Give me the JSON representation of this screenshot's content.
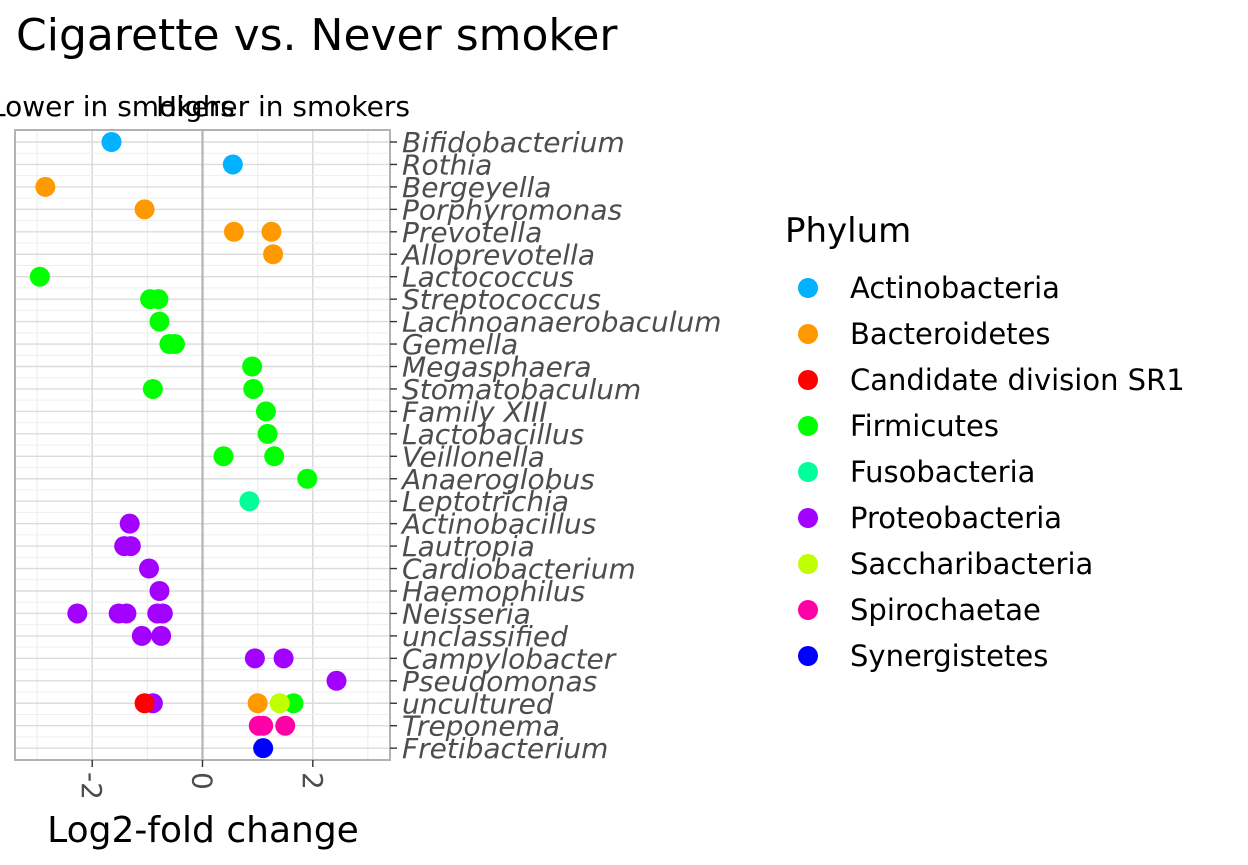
{
  "chart_data": {
    "type": "scatter",
    "title": "Cigarette vs. Never smoker",
    "xlabel": "Log2-fold change",
    "ylabel": "",
    "direction_labels": {
      "lower": "Lower in smokers",
      "higher": "Higher in smokers"
    },
    "xlim": [
      -3.4,
      3.4
    ],
    "x_ticks": [
      -2,
      0,
      2
    ],
    "x_tick_labels": [
      "-2",
      "0",
      "2"
    ],
    "grid": true,
    "legend_position": "right",
    "genera": [
      "Bifidobacterium",
      "Rothia",
      "Bergeyella",
      "Porphyromonas",
      "Prevotella",
      "Alloprevotella",
      "Lactococcus",
      "Streptococcus",
      "Lachnoanaerobaculum",
      "Gemella",
      "Megasphaera",
      "Stomatobaculum",
      "Family XIII",
      "Lactobacillus",
      "Veillonella",
      "Anaeroglobus",
      "Leptotrichia",
      "Actinobacillus",
      "Lautropia",
      "Cardiobacterium",
      "Haemophilus",
      "Neisseria",
      "unclassified",
      "Campylobacter",
      "Pseudomonas",
      "uncultured",
      "Treponema",
      "Fretibacterium"
    ],
    "legend": {
      "title": "Phylum",
      "entries": [
        {
          "name": "Actinobacteria",
          "color": "#00B2FF"
        },
        {
          "name": "Bacteroidetes",
          "color": "#FF9900"
        },
        {
          "name": "Candidate division SR1",
          "color": "#FF0000"
        },
        {
          "name": "Firmicutes",
          "color": "#00FF00"
        },
        {
          "name": "Fusobacteria",
          "color": "#00FF99"
        },
        {
          "name": "Proteobacteria",
          "color": "#A200FF"
        },
        {
          "name": "Saccharibacteria",
          "color": "#BFFF00"
        },
        {
          "name": "Spirochaetae",
          "color": "#FF00A6"
        },
        {
          "name": "Synergistetes",
          "color": "#0000FF"
        }
      ]
    },
    "points": [
      {
        "genus": "Bifidobacterium",
        "x": -1.65,
        "phylum": "Actinobacteria"
      },
      {
        "genus": "Rothia",
        "x": 0.55,
        "phylum": "Actinobacteria"
      },
      {
        "genus": "Bergeyella",
        "x": -2.85,
        "phylum": "Bacteroidetes"
      },
      {
        "genus": "Porphyromonas",
        "x": -1.05,
        "phylum": "Bacteroidetes"
      },
      {
        "genus": "Prevotella",
        "x": 0.57,
        "phylum": "Bacteroidetes"
      },
      {
        "genus": "Prevotella",
        "x": 1.25,
        "phylum": "Bacteroidetes"
      },
      {
        "genus": "Alloprevotella",
        "x": 1.28,
        "phylum": "Bacteroidetes"
      },
      {
        "genus": "Lactococcus",
        "x": -2.95,
        "phylum": "Firmicutes"
      },
      {
        "genus": "Streptococcus",
        "x": -0.95,
        "phylum": "Firmicutes"
      },
      {
        "genus": "Streptococcus",
        "x": -0.8,
        "phylum": "Firmicutes"
      },
      {
        "genus": "Lachnoanaerobaculum",
        "x": -0.78,
        "phylum": "Firmicutes"
      },
      {
        "genus": "Gemella",
        "x": -0.6,
        "phylum": "Firmicutes"
      },
      {
        "genus": "Gemella",
        "x": -0.5,
        "phylum": "Firmicutes"
      },
      {
        "genus": "Megasphaera",
        "x": 0.9,
        "phylum": "Firmicutes"
      },
      {
        "genus": "Stomatobaculum",
        "x": -0.9,
        "phylum": "Firmicutes"
      },
      {
        "genus": "Stomatobaculum",
        "x": 0.92,
        "phylum": "Firmicutes"
      },
      {
        "genus": "Family XIII",
        "x": 1.15,
        "phylum": "Firmicutes"
      },
      {
        "genus": "Lactobacillus",
        "x": 1.18,
        "phylum": "Firmicutes"
      },
      {
        "genus": "Veillonella",
        "x": 0.38,
        "phylum": "Firmicutes"
      },
      {
        "genus": "Veillonella",
        "x": 1.3,
        "phylum": "Firmicutes"
      },
      {
        "genus": "Anaeroglobus",
        "x": 1.9,
        "phylum": "Firmicutes"
      },
      {
        "genus": "Leptotrichia",
        "x": 0.85,
        "phylum": "Fusobacteria"
      },
      {
        "genus": "Actinobacillus",
        "x": -1.32,
        "phylum": "Proteobacteria"
      },
      {
        "genus": "Lautropia",
        "x": -1.42,
        "phylum": "Proteobacteria"
      },
      {
        "genus": "Lautropia",
        "x": -1.3,
        "phylum": "Proteobacteria"
      },
      {
        "genus": "Cardiobacterium",
        "x": -0.97,
        "phylum": "Proteobacteria"
      },
      {
        "genus": "Haemophilus",
        "x": -0.78,
        "phylum": "Proteobacteria"
      },
      {
        "genus": "Neisseria",
        "x": -2.27,
        "phylum": "Proteobacteria"
      },
      {
        "genus": "Neisseria",
        "x": -1.52,
        "phylum": "Proteobacteria"
      },
      {
        "genus": "Neisseria",
        "x": -1.38,
        "phylum": "Proteobacteria"
      },
      {
        "genus": "Neisseria",
        "x": -0.82,
        "phylum": "Proteobacteria"
      },
      {
        "genus": "Neisseria",
        "x": -0.72,
        "phylum": "Proteobacteria"
      },
      {
        "genus": "unclassified",
        "x": -1.1,
        "phylum": "Proteobacteria"
      },
      {
        "genus": "unclassified",
        "x": -0.75,
        "phylum": "Proteobacteria"
      },
      {
        "genus": "Campylobacter",
        "x": 0.95,
        "phylum": "Proteobacteria"
      },
      {
        "genus": "Campylobacter",
        "x": 1.47,
        "phylum": "Proteobacteria"
      },
      {
        "genus": "Pseudomonas",
        "x": 2.43,
        "phylum": "Proteobacteria"
      },
      {
        "genus": "uncultured",
        "x": -0.9,
        "phylum": "Proteobacteria"
      },
      {
        "genus": "uncultured",
        "x": -1.05,
        "phylum": "Candidate division SR1"
      },
      {
        "genus": "uncultured",
        "x": 1.0,
        "phylum": "Bacteroidetes"
      },
      {
        "genus": "uncultured",
        "x": 1.65,
        "phylum": "Firmicutes"
      },
      {
        "genus": "uncultured",
        "x": 1.4,
        "phylum": "Saccharibacteria"
      },
      {
        "genus": "Treponema",
        "x": 1.02,
        "phylum": "Spirochaetae"
      },
      {
        "genus": "Treponema",
        "x": 1.1,
        "phylum": "Spirochaetae"
      },
      {
        "genus": "Treponema",
        "x": 1.5,
        "phylum": "Spirochaetae"
      },
      {
        "genus": "Fretibacterium",
        "x": 1.1,
        "phylum": "Synergistetes"
      }
    ]
  }
}
